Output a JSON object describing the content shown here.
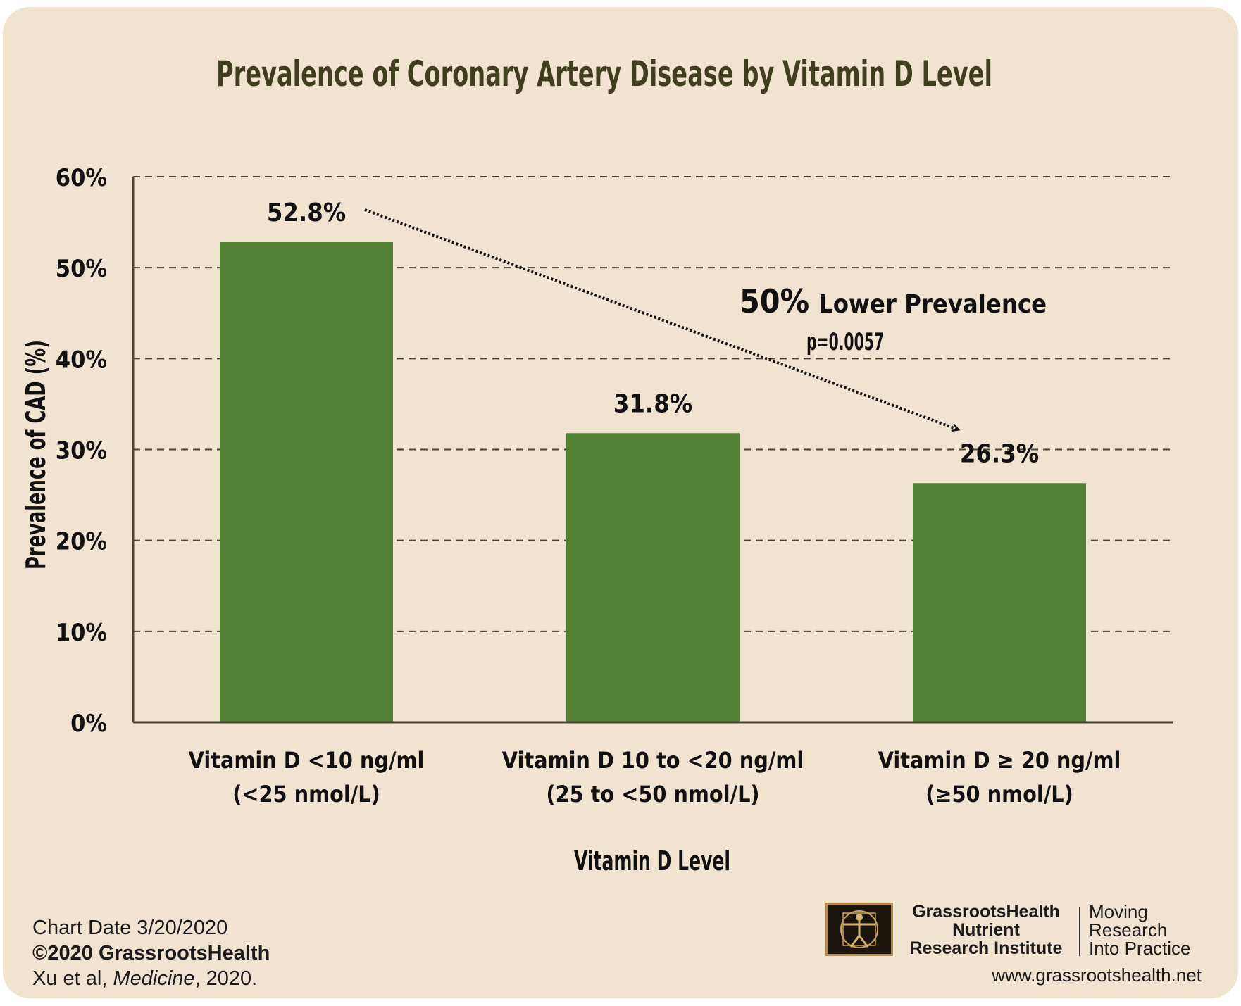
{
  "chart_data": {
    "type": "bar",
    "title": "Prevalence of Coronary Artery Disease by Vitamin D Level",
    "xlabel": "Vitamin D Level",
    "ylabel": "Prevalence of CAD (%)",
    "ylim": [
      0,
      60
    ],
    "y_ticks": [
      "0%",
      "10%",
      "20%",
      "30%",
      "40%",
      "50%",
      "60%"
    ],
    "grid": "horizontal dashed",
    "categories": [
      {
        "line1": "Vitamin D <10 ng/ml",
        "line2": "(<25 nmol/L)"
      },
      {
        "line1": "Vitamin D 10 to <20 ng/ml",
        "line2": "(25 to <50 nmol/L)"
      },
      {
        "line1": "Vitamin D ≥ 20 ng/ml",
        "line2": "(≥50 nmol/L)"
      }
    ],
    "values": [
      52.8,
      31.8,
      26.3
    ],
    "data_labels": [
      "52.8%",
      "31.8%",
      "26.3%"
    ],
    "bar_color": "#538135",
    "annotation": {
      "big": "50%",
      "text": "Lower Prevalence",
      "p_value": "p=0.0057"
    }
  },
  "colors": {
    "background": "#f0e4d0",
    "title": "#3f3f1d",
    "axis": "#4a4530",
    "text": "#111111"
  },
  "footer": {
    "chart_date": "Chart Date 3/20/2020",
    "copyright": "©2020 GrassrootsHealth",
    "citation_prefix": "Xu et al, ",
    "citation_journal": "Medicine",
    "citation_suffix": ", 2020."
  },
  "logo": {
    "name_line1": "GrassrootsHealth",
    "name_line2": "Nutrient",
    "name_line3": "Research Institute",
    "tagline_line1": "Moving",
    "tagline_line2": "Research",
    "tagline_line3": "Into Practice",
    "url": "www.grassrootshealth.net"
  }
}
